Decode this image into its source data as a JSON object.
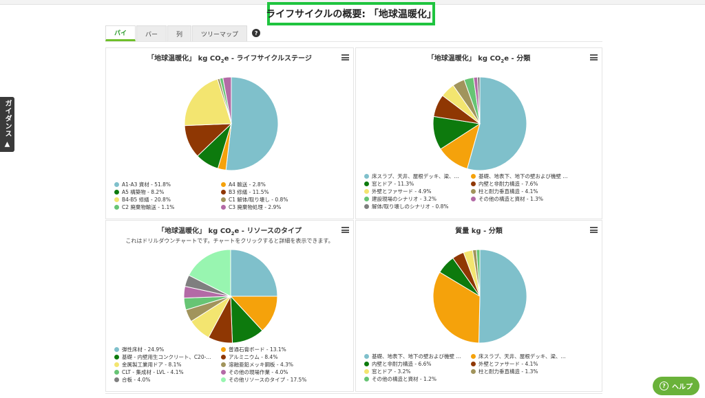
{
  "page": {
    "title": "ライフサイクルの概要: 「地球温暖化」",
    "guidance_tab": "ガイダンス ▲",
    "help_button": "ヘルプ",
    "help_q": "?"
  },
  "tabs": [
    {
      "label": "パイ",
      "active": true
    },
    {
      "label": "バー",
      "active": false
    },
    {
      "label": "列",
      "active": false
    },
    {
      "label": "ツリーマップ",
      "active": false
    }
  ],
  "chart_data": [
    {
      "type": "pie",
      "title_pre": "「地球温暖化」 kg CO",
      "title_sub": "2",
      "title_post": "e - ライフサイクルステージ",
      "slices": [
        {
          "label": "A1-A3 資材 - 51.8%",
          "value": 51.8,
          "color": "#7fc0cb"
        },
        {
          "label": "A4 輸送 - 2.8%",
          "value": 2.8,
          "color": "#f5a20b"
        },
        {
          "label": "A5 構築物 - 8.2%",
          "value": 8.2,
          "color": "#0d7a0d"
        },
        {
          "label": "B3 修繕 - 11.5%",
          "value": 11.5,
          "color": "#8f3703"
        },
        {
          "label": "B4-B5 修繕 - 20.8%",
          "value": 20.8,
          "color": "#f3e570"
        },
        {
          "label": "C1 解体/取り壊し - 0.8%",
          "value": 0.8,
          "color": "#a1945c"
        },
        {
          "label": "C2 廃棄物輸送 - 1.1%",
          "value": 1.1,
          "color": "#67c474"
        },
        {
          "label": "C3 廃棄物処理 - 2.9%",
          "value": 2.9,
          "color": "#b36aa6"
        }
      ]
    },
    {
      "type": "pie",
      "title_pre": "「地球温暖化」 kg CO",
      "title_sub": "2",
      "title_post": "e - 分類",
      "slices": [
        {
          "label": "床スラブ、天井、屋根デッキ、梁、...",
          "value": 52.9,
          "color": "#7fc0cb"
        },
        {
          "label": "基礎、地表下、地下の壁および機壁 ...",
          "value": 11.2,
          "color": "#f5a20b"
        },
        {
          "label": "窓とドア - 11.3%",
          "value": 11.3,
          "color": "#0d7a0d"
        },
        {
          "label": "内壁と非耐力構造 - 7.6%",
          "value": 7.6,
          "color": "#8f3703"
        },
        {
          "label": "外壁とファサード - 4.9%",
          "value": 4.9,
          "color": "#f3e570"
        },
        {
          "label": "柱と耐力垂直構造 - 4.1%",
          "value": 4.1,
          "color": "#a1945c"
        },
        {
          "label": "建設現場のシナリオ - 3.2%",
          "value": 3.2,
          "color": "#67c474"
        },
        {
          "label": "その他の構造と資材 - 1.3%",
          "value": 1.3,
          "color": "#b36aa6"
        },
        {
          "label": "解体/取り壊しのシナリオ - 0.8%",
          "value": 0.8,
          "color": "#7f7f7f"
        }
      ]
    },
    {
      "type": "pie",
      "title_pre": "「地球温暖化」 kg CO",
      "title_sub": "2",
      "title_post": "e - リソースのタイプ",
      "subtitle": "これはドリルダウンチャートです。チャートをクリックすると詳細を表示できます。",
      "slices": [
        {
          "label": "弾性床材 - 24.9%",
          "value": 24.9,
          "color": "#7fc0cb"
        },
        {
          "label": "普通石膏ボード - 13.1%",
          "value": 13.1,
          "color": "#f5a20b"
        },
        {
          "label": "基礎 - 内壁用生コンクリート、C20-...",
          "value": 11.2,
          "color": "#0d7a0d"
        },
        {
          "label": "アルミニウム - 8.4%",
          "value": 8.4,
          "color": "#8f3703"
        },
        {
          "label": "金属製工業用ドア - 8.1%",
          "value": 8.1,
          "color": "#f3e570"
        },
        {
          "label": "溶融亜鉛メッキ鋼板 - 4.3%",
          "value": 4.3,
          "color": "#a1945c"
        },
        {
          "label": "CLT - 集成材 - LVL - 4.1%",
          "value": 4.1,
          "color": "#67c474"
        },
        {
          "label": "その他の現場作業 - 4.0%",
          "value": 4.0,
          "color": "#b36aa6"
        },
        {
          "label": "合板 - 4.0%",
          "value": 4.0,
          "color": "#7f7f7f"
        },
        {
          "label": "その他リソースのタイプ - 17.5%",
          "value": 17.5,
          "color": "#98f5b0"
        }
      ]
    },
    {
      "type": "pie",
      "title_pre": "質量 kg - 分類",
      "title_sub": "",
      "title_post": "",
      "slices": [
        {
          "label": "基礎、地表下、地下の壁および機壁 ...",
          "value": 50.4,
          "color": "#7fc0cb"
        },
        {
          "label": "床スラブ、天井、屋根デッキ、梁、...",
          "value": 33.3,
          "color": "#f5a20b"
        },
        {
          "label": "内壁と非耐力構造 - 6.6%",
          "value": 6.6,
          "color": "#0d7a0d"
        },
        {
          "label": "外壁とファサード - 4.1%",
          "value": 4.1,
          "color": "#8f3703"
        },
        {
          "label": "窓とドア - 3.2%",
          "value": 3.2,
          "color": "#f3e570"
        },
        {
          "label": "柱と耐力垂直構造 - 1.3%",
          "value": 1.3,
          "color": "#a1945c"
        },
        {
          "label": "その他の構造と資材 - 1.2%",
          "value": 1.2,
          "color": "#67c474"
        }
      ]
    }
  ]
}
